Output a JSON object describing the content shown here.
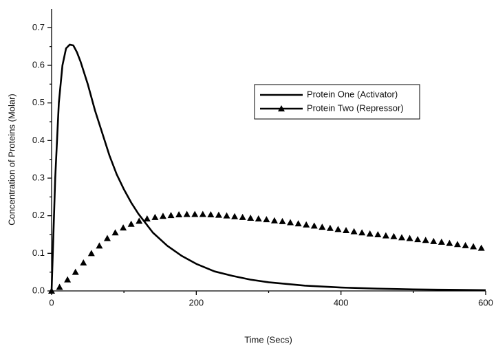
{
  "chart_data": {
    "type": "line",
    "x_label": "Time (Secs)",
    "y_label": "Concentration of Proteins (Molar)",
    "xlim": [
      0,
      600
    ],
    "ylim": [
      0,
      0.75
    ],
    "xticks": [
      0,
      200,
      400,
      600
    ],
    "xminor_ticks": [
      100,
      300,
      500
    ],
    "yticks": [
      {
        "value": 0,
        "label": "0.0"
      },
      0.1,
      0.2,
      0.3,
      0.4,
      0.5,
      0.6,
      0.7
    ],
    "yminor_ticks": [
      0.05,
      0.15,
      0.25,
      0.35,
      0.45,
      0.55,
      0.65
    ],
    "series": [
      {
        "name": "Protein One (Activator)",
        "color": "#000000",
        "marker": "none",
        "x": [
          0,
          5,
          10,
          15,
          20,
          25,
          30,
          35,
          40,
          50,
          60,
          70,
          80,
          90,
          100,
          110,
          120,
          130,
          140,
          160,
          180,
          200,
          225,
          250,
          275,
          300,
          350,
          400,
          450,
          500,
          550,
          600
        ],
        "values": [
          0,
          0.3,
          0.5,
          0.6,
          0.645,
          0.655,
          0.653,
          0.635,
          0.61,
          0.55,
          0.48,
          0.42,
          0.36,
          0.31,
          0.27,
          0.235,
          0.205,
          0.18,
          0.155,
          0.12,
          0.093,
          0.072,
          0.052,
          0.04,
          0.03,
          0.023,
          0.014,
          0.009,
          0.006,
          0.004,
          0.003,
          0.002
        ]
      },
      {
        "name": "Protein Two (Repressor)",
        "color": "#000000",
        "marker": "triangle",
        "x": [
          0,
          11,
          22,
          33,
          44,
          55,
          66,
          77,
          88,
          99,
          110,
          121,
          132,
          143,
          154,
          165,
          176,
          187,
          198,
          209,
          220,
          231,
          242,
          253,
          264,
          275,
          286,
          297,
          308,
          319,
          330,
          341,
          352,
          363,
          374,
          385,
          396,
          407,
          418,
          429,
          440,
          451,
          462,
          473,
          484,
          495,
          506,
          517,
          528,
          539,
          550,
          561,
          572,
          583,
          594
        ],
        "values": [
          0,
          0.01,
          0.03,
          0.05,
          0.075,
          0.1,
          0.12,
          0.14,
          0.155,
          0.168,
          0.178,
          0.186,
          0.192,
          0.196,
          0.199,
          0.201,
          0.203,
          0.204,
          0.204,
          0.204,
          0.203,
          0.202,
          0.2,
          0.198,
          0.196,
          0.194,
          0.192,
          0.19,
          0.187,
          0.185,
          0.182,
          0.179,
          0.176,
          0.173,
          0.17,
          0.167,
          0.164,
          0.161,
          0.158,
          0.155,
          0.152,
          0.15,
          0.147,
          0.145,
          0.142,
          0.14,
          0.137,
          0.135,
          0.132,
          0.13,
          0.127,
          0.124,
          0.121,
          0.118,
          0.114
        ]
      }
    ]
  }
}
